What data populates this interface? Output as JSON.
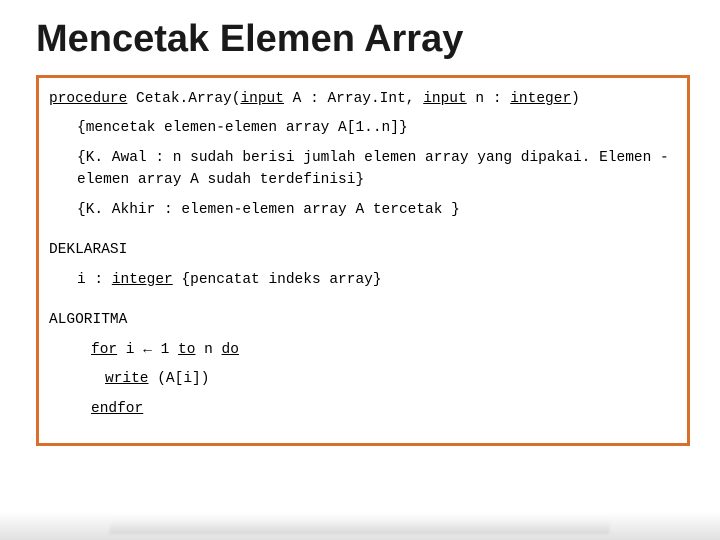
{
  "title": "Mencetak Elemen Array",
  "codebox": {
    "border_color": "#d86f2a",
    "line1": {
      "kw_procedure": "procedure",
      "sp1": " Cetak.Array(",
      "kw_input1": "input",
      "sp2": " A : Array.Int, ",
      "kw_input2": "input",
      "sp3": " n : ",
      "kw_integer": "integer",
      "sp4": ")"
    },
    "comment1": "{mencetak elemen-elemen array A[1..n]}",
    "comment2": "{K. Awal : n sudah berisi jumlah elemen array yang dipakai. Elemen -elemen array A sudah terdefinisi}",
    "comment3": "{K. Akhir : elemen-elemen array A tercetak }",
    "deklarasi_label": "DEKLARASI",
    "dekl_line": {
      "pre": "i : ",
      "kw_integer": "integer",
      "post": " {pencatat indeks array}"
    },
    "algoritma_label": "ALGORITMA",
    "for_line": {
      "kw_for": "for",
      "sp1": " i ",
      "arrow": "←",
      "sp2": " 1 ",
      "kw_to": "to",
      "sp3": " n ",
      "kw_do": "do"
    },
    "write_line": {
      "kw_write": "write",
      "rest": " (A[i])"
    },
    "endfor": "endfor"
  }
}
